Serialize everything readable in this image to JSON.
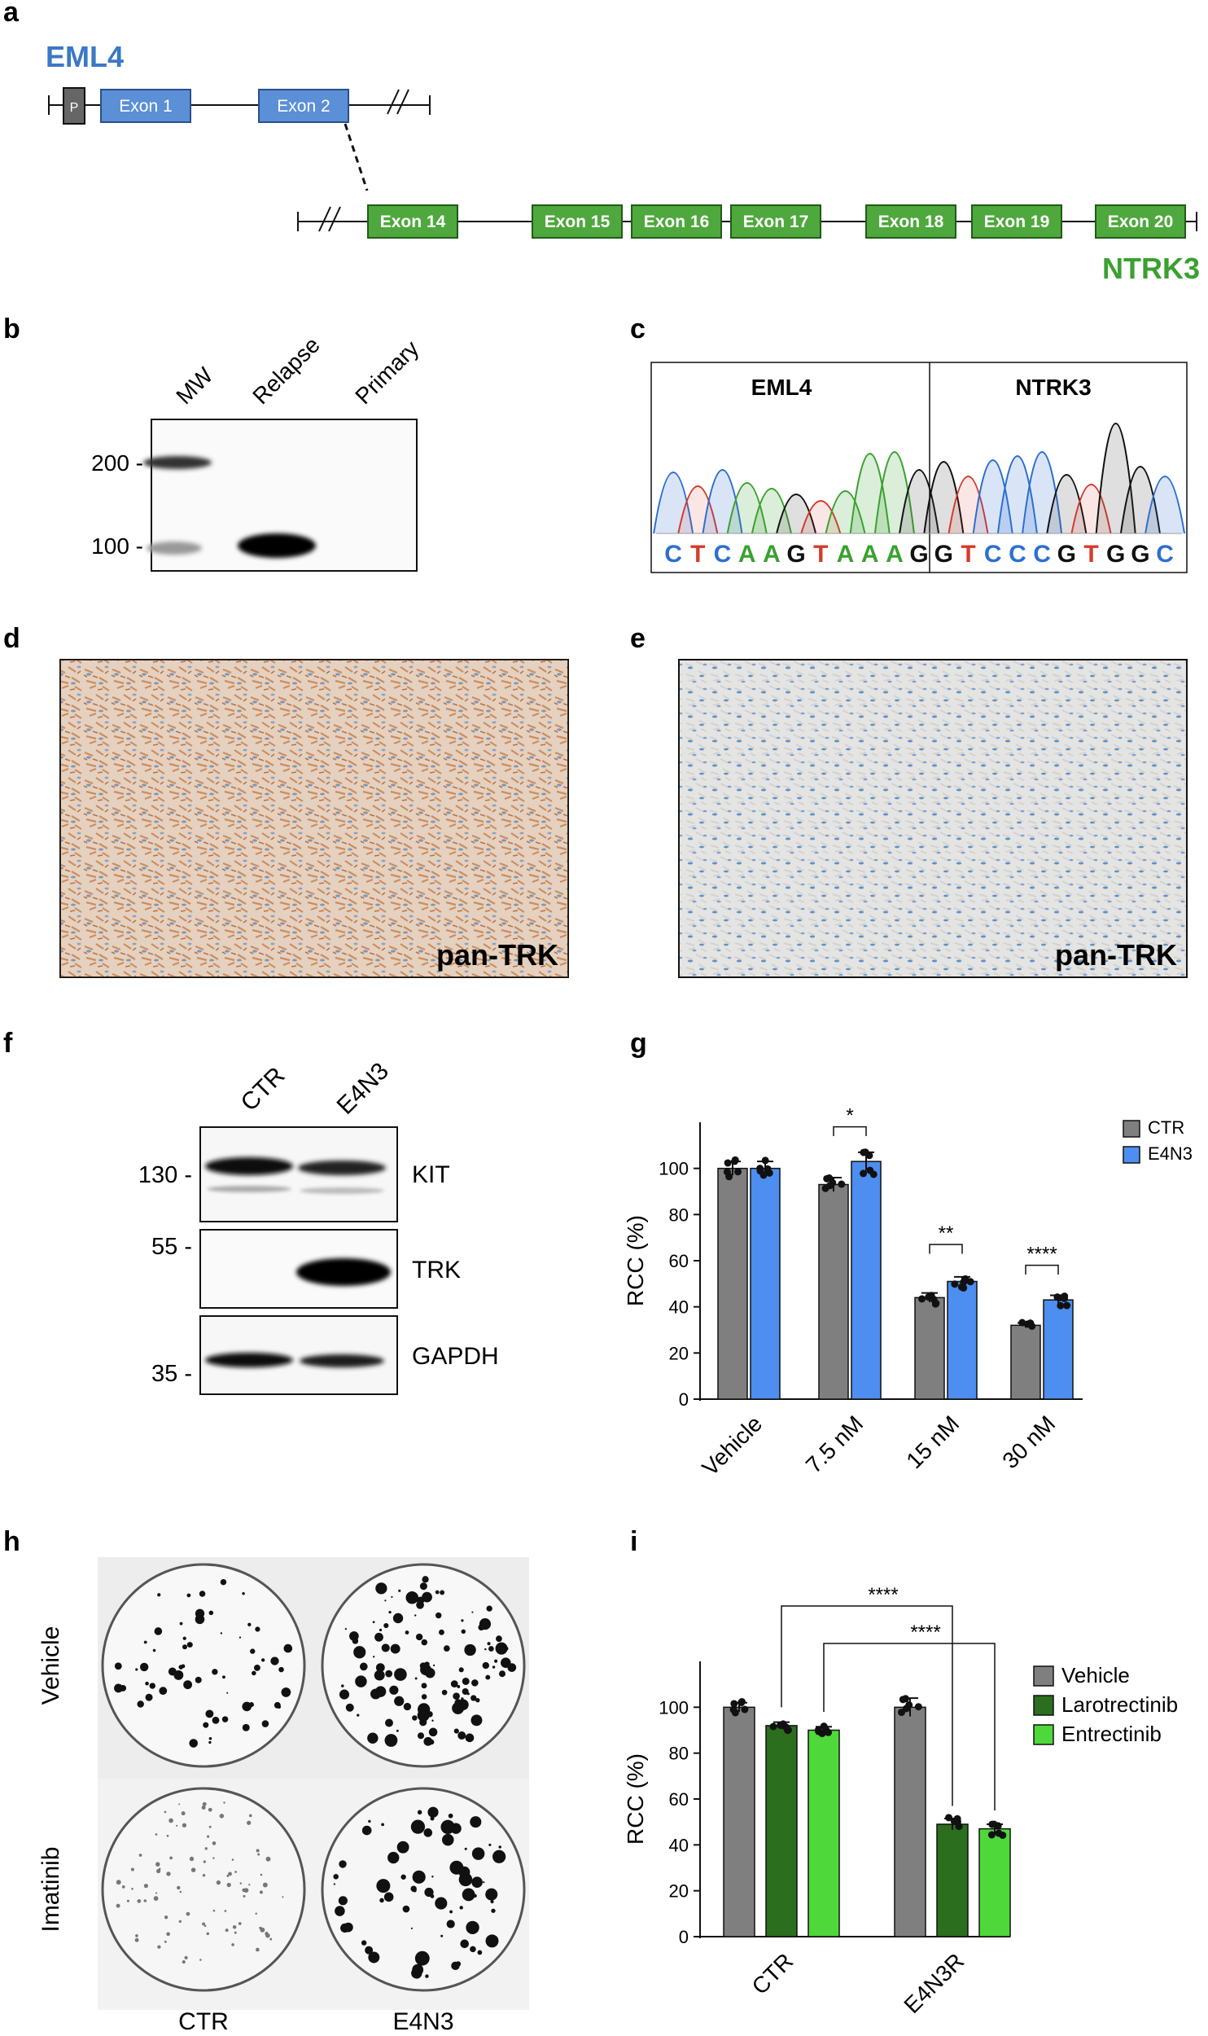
{
  "panels": {
    "a": {
      "label": "a",
      "gene1": "EML4",
      "gene2": "NTRK3",
      "promoter": "P",
      "eml4_exons": [
        "Exon 1",
        "Exon 2"
      ],
      "ntrk3_exons": [
        "Exon 14",
        "Exon 15",
        "Exon 16",
        "Exon 17",
        "Exon 18",
        "Exon 19",
        "Exon 20"
      ],
      "colors": {
        "eml4": "#3b78c6",
        "ntrk3": "#3aa12e",
        "eml4_box": "#5b8fd6",
        "ntrk3_box": "#4fa83d"
      }
    },
    "b": {
      "label": "b",
      "lanes": [
        "MW",
        "Relapse",
        "Primary"
      ],
      "markers": [
        "200 -",
        "100 -"
      ]
    },
    "c": {
      "label": "c",
      "left_title": "EML4",
      "right_title": "NTRK3",
      "seq_left": [
        "C",
        "T",
        "C",
        "A",
        "A",
        "G",
        "T",
        "A",
        "A",
        "A",
        "G"
      ],
      "seq_right": [
        "G",
        "T",
        "C",
        "C",
        "C",
        "G",
        "T",
        "G",
        "G",
        "C"
      ],
      "base_colors": {
        "A": "#3aa12e",
        "C": "#2e6fd0",
        "G": "#111111",
        "T": "#d63a2a"
      }
    },
    "d": {
      "label": "d",
      "stain": "pan-TRK"
    },
    "e": {
      "label": "e",
      "stain": "pan-TRK"
    },
    "f": {
      "label": "f",
      "lanes": [
        "CTR",
        "E4N3"
      ],
      "markers": [
        "130 -",
        "55 -",
        "35 -"
      ],
      "proteins": [
        "KIT",
        "TRK",
        "GAPDH"
      ]
    },
    "h": {
      "label": "h",
      "rows": [
        "Vehicle",
        "Imatinib"
      ],
      "cols": [
        "CTR",
        "E4N3"
      ]
    },
    "g_label": "g",
    "i_label": "i"
  },
  "chart_data": [
    {
      "panel": "g",
      "type": "bar",
      "ylabel": "RCC (%)",
      "xlabel": "",
      "ylim": [
        0,
        120
      ],
      "yticks": [
        "0",
        "20",
        "40",
        "60",
        "80",
        "100"
      ],
      "categories": [
        "Vehicle",
        "7.5 nM",
        "15 nM",
        "30 nM"
      ],
      "series": [
        {
          "name": "CTR",
          "color": "#7f7f7f",
          "values": [
            100,
            93,
            44,
            32
          ],
          "sem": [
            3,
            3,
            2,
            1
          ]
        },
        {
          "name": "E4N3",
          "color": "#4d8ef0",
          "values": [
            100,
            103,
            51,
            43
          ],
          "sem": [
            3,
            4,
            2,
            2
          ]
        }
      ],
      "significance": [
        {
          "category": "7.5 nM",
          "text": "*"
        },
        {
          "category": "15 nM",
          "text": "**"
        },
        {
          "category": "30 nM",
          "text": "****"
        }
      ],
      "legend_position": "top-right"
    },
    {
      "panel": "i",
      "type": "bar",
      "ylabel": "RCC (%)",
      "xlabel": "",
      "ylim": [
        0,
        120
      ],
      "yticks": [
        "0",
        "20",
        "40",
        "60",
        "80",
        "100"
      ],
      "categories": [
        "CTR",
        "E4N3R"
      ],
      "series": [
        {
          "name": "Vehicle",
          "color": "#7f7f7f",
          "values": [
            100,
            100
          ],
          "sem": [
            2,
            4
          ]
        },
        {
          "name": "Larotrectinib",
          "color": "#2a6e1e",
          "values": [
            92,
            49
          ],
          "sem": [
            1.5,
            2.5
          ]
        },
        {
          "name": "Entrectinib",
          "color": "#4fd83a",
          "values": [
            90,
            47
          ],
          "sem": [
            1.5,
            2
          ]
        }
      ],
      "significance": [
        {
          "from": "CTR / Larotrectinib",
          "to": "E4N3R / Larotrectinib",
          "text": "****"
        },
        {
          "from": "CTR / Entrectinib",
          "to": "E4N3R / Entrectinib",
          "text": "****"
        }
      ],
      "legend_position": "top-right"
    }
  ]
}
